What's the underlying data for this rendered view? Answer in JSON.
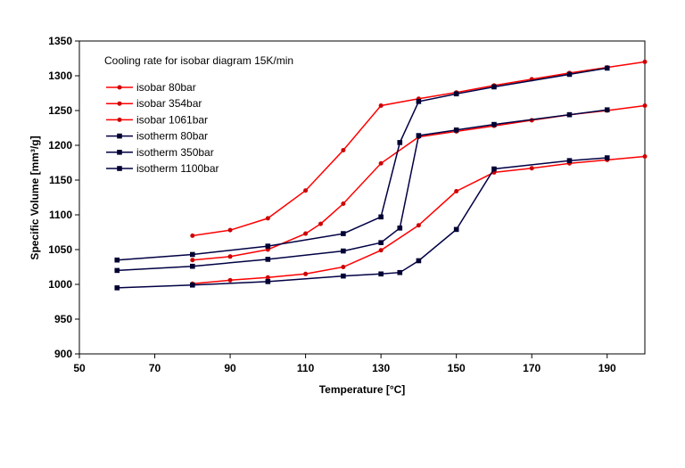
{
  "chart_data": {
    "type": "line",
    "title": "",
    "annotation": "Cooling rate for isobar diagram 15K/min",
    "xlabel": "Temperature [°C]",
    "ylabel": "Specific Volume  [mm³/g]",
    "xlim": [
      50,
      200
    ],
    "ylim": [
      900,
      1350
    ],
    "xticks": [
      50,
      70,
      90,
      110,
      130,
      150,
      170,
      190
    ],
    "yticks": [
      900,
      950,
      1000,
      1050,
      1100,
      1150,
      1200,
      1250,
      1300,
      1350
    ],
    "grid": false,
    "legend_position": "top-left",
    "colors": {
      "isobar": "#ff0000",
      "isotherm": "#000044",
      "isobar_marker": "#cc0000",
      "isotherm_marker": "#000033"
    },
    "series": [
      {
        "name": "isobar 80bar",
        "kind": "isobar",
        "marker": "circle",
        "points": [
          [
            80,
            1070
          ],
          [
            90,
            1078
          ],
          [
            100,
            1095
          ],
          [
            110,
            1135
          ],
          [
            120,
            1193
          ],
          [
            130,
            1257
          ],
          [
            140,
            1267
          ],
          [
            150,
            1276
          ],
          [
            160,
            1286
          ],
          [
            170,
            1295
          ],
          [
            180,
            1304
          ],
          [
            190,
            1312
          ],
          [
            200,
            1320
          ]
        ]
      },
      {
        "name": "isobar 354bar",
        "kind": "isobar",
        "marker": "circle",
        "points": [
          [
            80,
            1035
          ],
          [
            90,
            1040
          ],
          [
            100,
            1050
          ],
          [
            110,
            1073
          ],
          [
            114,
            1087
          ],
          [
            120,
            1116
          ],
          [
            130,
            1174
          ],
          [
            140,
            1212
          ],
          [
            150,
            1220
          ],
          [
            160,
            1228
          ],
          [
            170,
            1236
          ],
          [
            180,
            1244
          ],
          [
            190,
            1250
          ],
          [
            200,
            1257
          ]
        ]
      },
      {
        "name": "isobar 1061bar",
        "kind": "isobar",
        "marker": "circle",
        "points": [
          [
            80,
            1001
          ],
          [
            90,
            1006
          ],
          [
            100,
            1010
          ],
          [
            110,
            1015
          ],
          [
            120,
            1025
          ],
          [
            130,
            1049
          ],
          [
            140,
            1085
          ],
          [
            150,
            1134
          ],
          [
            160,
            1161
          ],
          [
            170,
            1167
          ],
          [
            180,
            1174
          ],
          [
            190,
            1179
          ],
          [
            200,
            1184
          ]
        ]
      },
      {
        "name": "isotherm 80bar",
        "kind": "isotherm",
        "marker": "square",
        "points": [
          [
            60,
            1035
          ],
          [
            80,
            1043
          ],
          [
            100,
            1055
          ],
          [
            120,
            1073
          ],
          [
            130,
            1097
          ],
          [
            135,
            1204
          ],
          [
            140,
            1263
          ],
          [
            150,
            1274
          ],
          [
            160,
            1284
          ],
          [
            180,
            1302
          ],
          [
            190,
            1311
          ]
        ]
      },
      {
        "name": "isotherm 350bar",
        "kind": "isotherm",
        "marker": "square",
        "points": [
          [
            60,
            1020
          ],
          [
            80,
            1026
          ],
          [
            100,
            1036
          ],
          [
            120,
            1048
          ],
          [
            130,
            1060
          ],
          [
            135,
            1081
          ],
          [
            140,
            1214
          ],
          [
            150,
            1222
          ],
          [
            160,
            1230
          ],
          [
            180,
            1244
          ],
          [
            190,
            1251
          ]
        ]
      },
      {
        "name": "isotherm 1100bar",
        "kind": "isotherm",
        "marker": "square",
        "points": [
          [
            60,
            995
          ],
          [
            80,
            999
          ],
          [
            100,
            1004
          ],
          [
            120,
            1012
          ],
          [
            130,
            1015
          ],
          [
            135,
            1017
          ],
          [
            140,
            1034
          ],
          [
            150,
            1079
          ],
          [
            160,
            1166
          ],
          [
            180,
            1178
          ],
          [
            190,
            1182
          ]
        ]
      }
    ]
  }
}
